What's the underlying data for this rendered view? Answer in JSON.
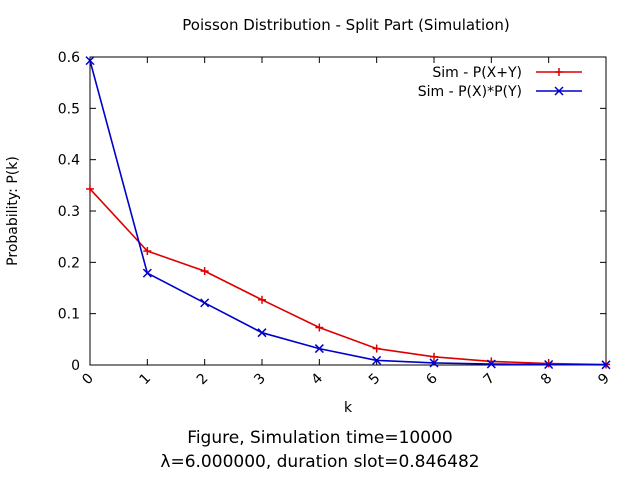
{
  "chart_data": {
    "type": "line",
    "title": "Poisson Distribution - Split Part (Simulation)",
    "xlabel": "k",
    "ylabel": "Probability: P(k)",
    "xlim": [
      0,
      9
    ],
    "ylim": [
      0,
      0.6
    ],
    "x_ticks": [
      "0",
      "1",
      "2",
      "3",
      "4",
      "5",
      "6",
      "7",
      "8",
      "9"
    ],
    "y_ticks": [
      "0",
      "0.1",
      "0.2",
      "0.3",
      "0.4",
      "0.5",
      "0.6"
    ],
    "legend_position": "top-right",
    "series": [
      {
        "name": "Sim - P(X+Y)",
        "color": "#dd0000",
        "marker": "plus",
        "x": [
          0,
          1,
          2,
          3,
          4,
          5,
          6,
          7,
          8,
          9
        ],
        "values": [
          0.343,
          0.222,
          0.183,
          0.127,
          0.073,
          0.032,
          0.016,
          0.007,
          0.003,
          0.001
        ]
      },
      {
        "name": "Sim - P(X)*P(Y)",
        "color": "#0000cc",
        "marker": "cross",
        "x": [
          0,
          1,
          2,
          3,
          4,
          5,
          6,
          7,
          8,
          9
        ],
        "values": [
          0.593,
          0.179,
          0.121,
          0.063,
          0.032,
          0.009,
          0.004,
          0.002,
          0.001,
          0.0004
        ]
      }
    ],
    "caption_line1": "Figure, Simulation time=10000",
    "caption_line2": "λ=6.000000, duration slot=0.846482"
  }
}
